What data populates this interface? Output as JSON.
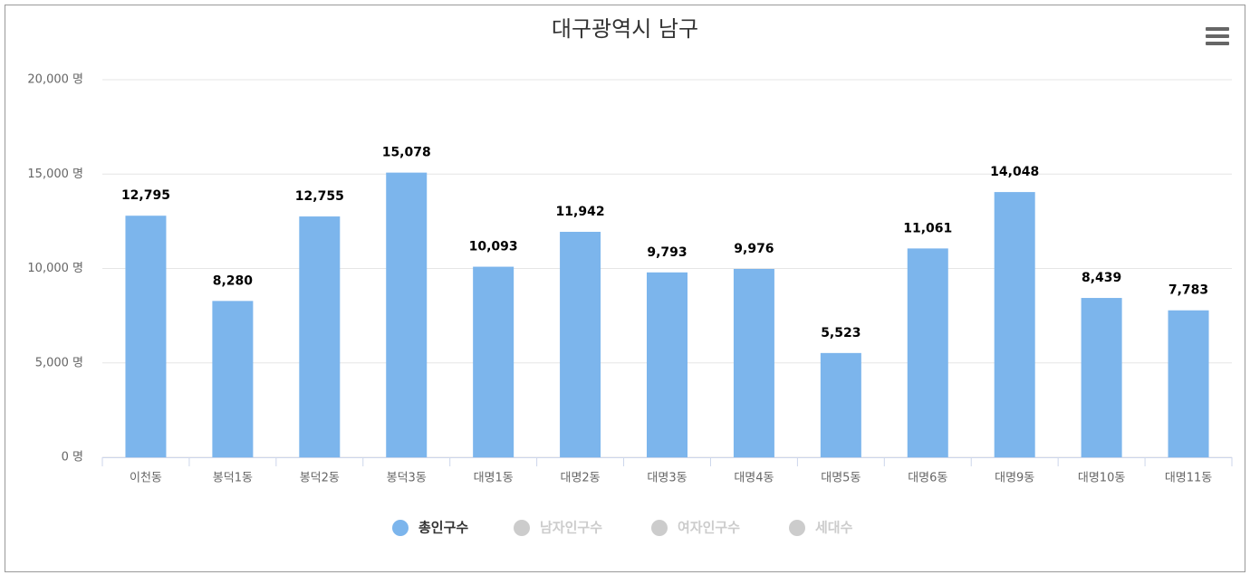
{
  "chart_data": {
    "type": "bar",
    "title": "대구광역시 남구",
    "categories": [
      "이천동",
      "봉덕1동",
      "봉덕2동",
      "봉덕3동",
      "대명1동",
      "대명2동",
      "대명3동",
      "대명4동",
      "대명5동",
      "대명6동",
      "대명9동",
      "대명10동",
      "대명11동"
    ],
    "series": [
      {
        "name": "총인구수",
        "color": "#7cb5ec",
        "visible": true,
        "values": [
          12795,
          8280,
          12755,
          15078,
          10093,
          11942,
          9793,
          9976,
          5523,
          11061,
          14048,
          8439,
          7783
        ],
        "value_labels": [
          "12,795",
          "8,280",
          "12,755",
          "15,078",
          "10,093",
          "11,942",
          "9,793",
          "9,976",
          "5,523",
          "11,061",
          "14,048",
          "8,439",
          "7,783"
        ]
      },
      {
        "name": "남자인구수",
        "color": "#cccccc",
        "visible": false
      },
      {
        "name": "여자인구수",
        "color": "#cccccc",
        "visible": false
      },
      {
        "name": "세대수",
        "color": "#cccccc",
        "visible": false
      }
    ],
    "ylim": [
      0,
      20000
    ],
    "yticks": [
      {
        "value": 0,
        "label": "0 명"
      },
      {
        "value": 5000,
        "label": "5,000 명"
      },
      {
        "value": 10000,
        "label": "10,000 명"
      },
      {
        "value": 15000,
        "label": "15,000 명"
      },
      {
        "value": 20000,
        "label": "20,000 명"
      }
    ],
    "grid": true
  }
}
